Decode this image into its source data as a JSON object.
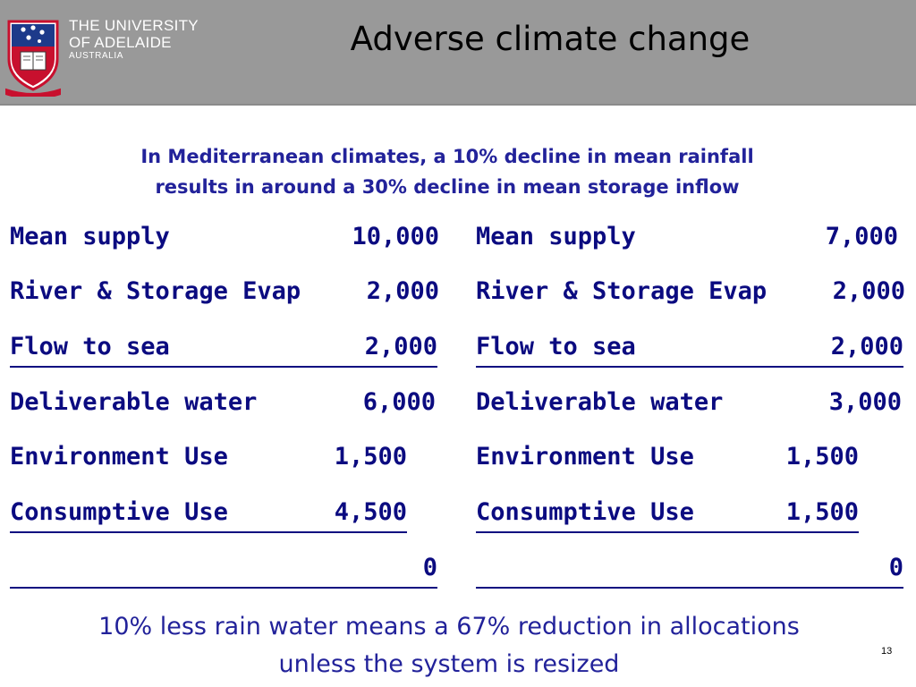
{
  "header": {
    "university_line1": "THE UNIVERSITY",
    "university_line2": "OF ADELAIDE",
    "university_line3": "AUSTRALIA",
    "motto": "SUB CRUCE LUMEN",
    "title": "Adverse climate change",
    "background_color": "#999999"
  },
  "subtitle": {
    "line1": "In Mediterranean climates, a 10% decline in mean rainfall",
    "line2": "results in around a 30% decline in mean storage inflow"
  },
  "left_table": {
    "rows": [
      {
        "label": "Mean supply",
        "value": "10,000"
      },
      {
        "label": "River & Storage Evap",
        "value": "2,000"
      },
      {
        "label": "Flow to sea",
        "value": "2,000"
      },
      {
        "label": "Deliverable water",
        "value": "6,000"
      },
      {
        "label": "Environment Use",
        "value": "1,500"
      },
      {
        "label": "Consumptive Use",
        "value": "4,500"
      },
      {
        "label": "",
        "value": "0"
      }
    ]
  },
  "right_table": {
    "rows": [
      {
        "label": "Mean supply",
        "value": "7,000"
      },
      {
        "label": "River & Storage Evap",
        "value": "2,000"
      },
      {
        "label": "Flow to sea",
        "value": "2,000"
      },
      {
        "label": "Deliverable water",
        "value": "3,000"
      },
      {
        "label": "Environment Use",
        "value": "1,500"
      },
      {
        "label": "Consumptive Use",
        "value": "1,500"
      },
      {
        "label": "",
        "value": "0"
      }
    ]
  },
  "conclusion": {
    "line1": "10% less rain water means a 67% reduction in allocations",
    "line2": "unless the system is resized"
  },
  "page_number": "13",
  "colors": {
    "text_navy": "#0b0b80",
    "subtitle_blue": "#22229a",
    "header_gray": "#999999"
  }
}
